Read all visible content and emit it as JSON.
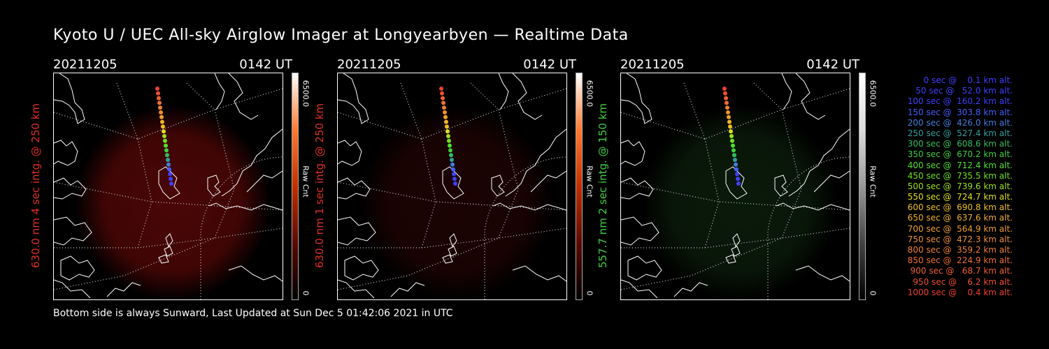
{
  "title": "Kyoto U / UEC All-sky Airglow Imager at Longyearbyen — Realtime Data",
  "panels": [
    {
      "date": "20211205",
      "time": "0142 UT",
      "side_label": "630.0 nm 4 sec intg. @ 250 km",
      "side_label_color": "#e03020",
      "colorbar_max": "6500.0",
      "colorbar_unit": "Raw Cnt",
      "colorbar_min": "0",
      "colorbar_gradient": [
        "#000000",
        "#5a0a00",
        "#c03000",
        "#ff7a30",
        "#ffffff"
      ],
      "glow_color": "#4a0606"
    },
    {
      "date": "20211205",
      "time": "0142 UT",
      "side_label": "630.0 nm 1 sec intg. @ 250 km",
      "side_label_color": "#e03020",
      "colorbar_max": "6500.0",
      "colorbar_unit": "Raw Cnt",
      "colorbar_min": "0",
      "colorbar_gradient": [
        "#000000",
        "#5a0a00",
        "#c03000",
        "#ff7a30",
        "#ffffff"
      ],
      "glow_color": "#1c0303"
    },
    {
      "date": "20211205",
      "time": "0142 UT",
      "side_label": "557.7 nm 2 sec intg. @ 150 km",
      "side_label_color": "#40d040",
      "colorbar_max": "6500.0",
      "colorbar_unit": "Raw Cnt",
      "colorbar_min": "0",
      "colorbar_gradient": [
        "#000000",
        "#444444",
        "#999999",
        "#dddddd",
        "#ffffff"
      ],
      "glow_color": "#0a1a0a"
    }
  ],
  "footer": "Bottom side is always Sunward, Last Updated at Sun Dec  5 01:42:06 2021 in UTC",
  "legend": [
    {
      "text": "  0 sec @    0.1 km alt.",
      "color": "#4040ff"
    },
    {
      "text": " 50 sec @   52.0 km alt.",
      "color": "#4040ff"
    },
    {
      "text": "100 sec @  160.2 km alt.",
      "color": "#4040ff"
    },
    {
      "text": "150 sec @  303.8 km alt.",
      "color": "#4060ff"
    },
    {
      "text": "200 sec @  426.0 km alt.",
      "color": "#4080e0"
    },
    {
      "text": "250 sec @  527.4 km alt.",
      "color": "#30a0a0"
    },
    {
      "text": "300 sec @  608.6 km alt.",
      "color": "#30c060"
    },
    {
      "text": "350 sec @  670.2 km alt.",
      "color": "#40d040"
    },
    {
      "text": "400 sec @  712.4 km alt.",
      "color": "#50e030"
    },
    {
      "text": "450 sec @  735.5 km alt.",
      "color": "#70e020"
    },
    {
      "text": "500 sec @  739.6 km alt.",
      "color": "#a0e020"
    },
    {
      "text": "550 sec @  724.7 km alt.",
      "color": "#e0e020"
    },
    {
      "text": "600 sec @  690.8 km alt.",
      "color": "#f0c020"
    },
    {
      "text": "650 sec @  637.6 km alt.",
      "color": "#f0b030"
    },
    {
      "text": "700 sec @  564.9 km alt.",
      "color": "#f0a030"
    },
    {
      "text": "750 sec @  472.3 km alt.",
      "color": "#f09030"
    },
    {
      "text": "800 sec @  359.2 km alt.",
      "color": "#f08030"
    },
    {
      "text": "850 sec @  224.9 km alt.",
      "color": "#f07030"
    },
    {
      "text": "900 sec @   68.7 km alt.",
      "color": "#f06030"
    },
    {
      "text": "950 sec @    6.2 km alt.",
      "color": "#f05030"
    },
    {
      "text": "1000 sec @    0.4 km alt.",
      "color": "#f04030"
    }
  ]
}
